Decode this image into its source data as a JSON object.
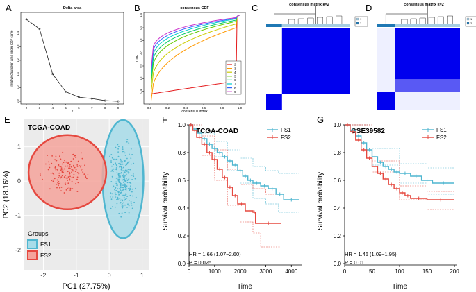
{
  "panels": {
    "A": {
      "letter": "A",
      "title": "Delta area",
      "xlabel": "k",
      "ylabel": "relative change in area under CDF curve",
      "x": [
        2,
        3,
        4,
        5,
        6,
        7,
        8,
        9
      ],
      "y": [
        1.5,
        1.43,
        1.1,
        0.97,
        0.93,
        0.92,
        0.905,
        0.9
      ],
      "xticks": [
        "2",
        "3",
        "4",
        "5",
        "6",
        "7",
        "8",
        "9"
      ],
      "yticks": [
        "0.9",
        "1.0",
        "1.1",
        "1.2",
        "1.3",
        "1.4"
      ],
      "yrange": [
        0.88,
        1.55
      ]
    },
    "B": {
      "letter": "B",
      "title": "consensus CDF",
      "xlabel": "consensus index",
      "ylabel": "CDF",
      "xticks": [
        "0.0",
        "0.2",
        "0.4",
        "0.6",
        "0.8",
        "1.0"
      ],
      "yticks": [
        "0.4",
        "0.5",
        "0.6",
        "0.7",
        "0.8",
        "0.9",
        "1.0"
      ],
      "legend": [
        {
          "label": "2",
          "color": "#e41a1c"
        },
        {
          "label": "3",
          "color": "#ff9900"
        },
        {
          "label": "4",
          "color": "#cccc00"
        },
        {
          "label": "5",
          "color": "#66cc00"
        },
        {
          "label": "6",
          "color": "#00cc66"
        },
        {
          "label": "7",
          "color": "#00cccc"
        },
        {
          "label": "8",
          "color": "#3366ff"
        },
        {
          "label": "9",
          "color": "#cc33cc"
        }
      ],
      "series": [
        {
          "k": "2",
          "start": 0.38,
          "end": 0.48,
          "curve": 0.6
        },
        {
          "k": "3",
          "start": 0.33,
          "end": 0.9,
          "curve": 0.4
        },
        {
          "k": "4",
          "start": 0.4,
          "end": 0.93,
          "curve": 0.35
        },
        {
          "k": "5",
          "start": 0.46,
          "end": 0.95,
          "curve": 0.3
        },
        {
          "k": "6",
          "start": 0.5,
          "end": 0.96,
          "curve": 0.28
        },
        {
          "k": "7",
          "start": 0.53,
          "end": 0.97,
          "curve": 0.26
        },
        {
          "k": "8",
          "start": 0.56,
          "end": 0.975,
          "curve": 0.24
        },
        {
          "k": "9",
          "start": 0.58,
          "end": 0.98,
          "curve": 0.22
        }
      ]
    },
    "C": {
      "letter": "C",
      "title": "consensus matrix k=2",
      "legend": [
        {
          "label": "1",
          "color": "#a6cee3"
        },
        {
          "label": "2",
          "color": "#1f78b4"
        }
      ],
      "split": 0.19,
      "blue": "#0000ee"
    },
    "D": {
      "letter": "D",
      "title": "consensus matrix k=2",
      "legend": [
        {
          "label": "1",
          "color": "#a6cee3"
        },
        {
          "label": "2",
          "color": "#1f78b4"
        }
      ],
      "split": 0.22,
      "blue": "#0000ee"
    },
    "E": {
      "letter": "E",
      "dataset": "TCGA-COAD",
      "xlabel": "PC1 (27.75%)",
      "ylabel": "PC2 (18.16%)",
      "xticks": [
        "-2",
        "-1",
        "0",
        "1"
      ],
      "yticks": [
        "-2",
        "-1",
        "0",
        "1"
      ],
      "xrange": [
        -2.6,
        1.2
      ],
      "yrange": [
        -2.6,
        1.8
      ],
      "groups_title": "Groups",
      "groups": [
        {
          "label": "FS1",
          "color": "#4fb6d0",
          "fill": "#a7dce9"
        },
        {
          "label": "FS2",
          "color": "#e5483f",
          "fill": "#f4a39b"
        }
      ],
      "ellipses": [
        {
          "group": "FS1",
          "cx": 0.42,
          "cy": 0.06,
          "rx": 0.62,
          "ry": 1.72
        },
        {
          "group": "FS2",
          "cx": -1.27,
          "cy": 0.26,
          "rx": 1.18,
          "ry": 1.08
        }
      ]
    },
    "F": {
      "letter": "F",
      "dataset": "TCGA-COAD",
      "xlabel": "Time",
      "ylabel": "Survival probability",
      "xticks": [
        "0",
        "1000",
        "2000",
        "3000",
        "4000"
      ],
      "yticks": [
        "0.0",
        "0.2",
        "0.4",
        "0.6",
        "0.8",
        "1.0"
      ],
      "xrange": [
        0,
        4400
      ],
      "hr": "HR = 1.66 (1.07−2.60)",
      "p": "P = 0.025",
      "legend": [
        {
          "label": "FS1",
          "color": "#4fb6d0"
        },
        {
          "label": "FS2",
          "color": "#e5483f"
        }
      ],
      "curves": {
        "FS1": [
          [
            0,
            1.0
          ],
          [
            150,
            0.97
          ],
          [
            300,
            0.94
          ],
          [
            500,
            0.9
          ],
          [
            700,
            0.86
          ],
          [
            900,
            0.83
          ],
          [
            1100,
            0.8
          ],
          [
            1300,
            0.77
          ],
          [
            1500,
            0.74
          ],
          [
            1700,
            0.71
          ],
          [
            1900,
            0.67
          ],
          [
            2100,
            0.63
          ],
          [
            2300,
            0.6
          ],
          [
            2500,
            0.58
          ],
          [
            2800,
            0.56
          ],
          [
            3100,
            0.54
          ],
          [
            3400,
            0.5
          ],
          [
            3700,
            0.46
          ],
          [
            4300,
            0.46
          ]
        ],
        "FS2": [
          [
            0,
            1.0
          ],
          [
            150,
            0.96
          ],
          [
            300,
            0.91
          ],
          [
            500,
            0.86
          ],
          [
            700,
            0.8
          ],
          [
            900,
            0.75
          ],
          [
            1100,
            0.68
          ],
          [
            1300,
            0.62
          ],
          [
            1500,
            0.55
          ],
          [
            1700,
            0.49
          ],
          [
            1900,
            0.43
          ],
          [
            2200,
            0.38
          ],
          [
            2500,
            0.37
          ],
          [
            2600,
            0.29
          ],
          [
            3600,
            0.29
          ]
        ]
      },
      "ci": {
        "FS1_hi": [
          [
            0,
            1.0
          ],
          [
            500,
            0.94
          ],
          [
            1000,
            0.88
          ],
          [
            1500,
            0.82
          ],
          [
            2000,
            0.76
          ],
          [
            2500,
            0.7
          ],
          [
            3000,
            0.67
          ],
          [
            3500,
            0.65
          ],
          [
            4300,
            0.65
          ]
        ],
        "FS1_lo": [
          [
            0,
            1.0
          ],
          [
            500,
            0.86
          ],
          [
            1000,
            0.77
          ],
          [
            1500,
            0.67
          ],
          [
            2000,
            0.58
          ],
          [
            2500,
            0.47
          ],
          [
            3000,
            0.43
          ],
          [
            3500,
            0.37
          ],
          [
            4300,
            0.32
          ]
        ],
        "FS2_hi": [
          [
            0,
            1.0
          ],
          [
            500,
            0.92
          ],
          [
            1000,
            0.82
          ],
          [
            1500,
            0.68
          ],
          [
            2000,
            0.57
          ],
          [
            2500,
            0.54
          ],
          [
            3000,
            0.5
          ],
          [
            3600,
            0.5
          ]
        ],
        "FS2_lo": [
          [
            0,
            1.0
          ],
          [
            500,
            0.78
          ],
          [
            1000,
            0.6
          ],
          [
            1500,
            0.42
          ],
          [
            2000,
            0.3
          ],
          [
            2500,
            0.22
          ],
          [
            2800,
            0.12
          ],
          [
            3600,
            0.12
          ]
        ]
      }
    },
    "G": {
      "letter": "G",
      "dataset": "GSE39582",
      "xlabel": "Time",
      "ylabel": "Survival probability",
      "xticks": [
        "0",
        "50",
        "100",
        "150",
        "200"
      ],
      "yticks": [
        "0.0",
        "0.2",
        "0.4",
        "0.6",
        "0.8",
        "1.0"
      ],
      "xrange": [
        0,
        205
      ],
      "hr": "HR = 1.46 (1.09−1.95)",
      "p": "P = 0.01",
      "legend": [
        {
          "label": "FS1",
          "color": "#4fb6d0"
        },
        {
          "label": "FS2",
          "color": "#e5483f"
        }
      ],
      "curves": {
        "FS1": [
          [
            0,
            1.0
          ],
          [
            10,
            0.96
          ],
          [
            20,
            0.92
          ],
          [
            30,
            0.87
          ],
          [
            40,
            0.82
          ],
          [
            50,
            0.77
          ],
          [
            60,
            0.73
          ],
          [
            70,
            0.7
          ],
          [
            80,
            0.68
          ],
          [
            90,
            0.66
          ],
          [
            100,
            0.65
          ],
          [
            120,
            0.63
          ],
          [
            140,
            0.6
          ],
          [
            160,
            0.58
          ],
          [
            200,
            0.58
          ]
        ],
        "FS2": [
          [
            0,
            1.0
          ],
          [
            10,
            0.95
          ],
          [
            20,
            0.89
          ],
          [
            30,
            0.82
          ],
          [
            40,
            0.76
          ],
          [
            50,
            0.7
          ],
          [
            60,
            0.65
          ],
          [
            70,
            0.61
          ],
          [
            80,
            0.57
          ],
          [
            90,
            0.54
          ],
          [
            100,
            0.51
          ],
          [
            110,
            0.49
          ],
          [
            120,
            0.47
          ],
          [
            150,
            0.46
          ],
          [
            200,
            0.46
          ]
        ]
      },
      "ci": {
        "FS1_hi": [
          [
            0,
            1.0
          ],
          [
            50,
            0.83
          ],
          [
            100,
            0.72
          ],
          [
            150,
            0.69
          ],
          [
            200,
            0.69
          ]
        ],
        "FS1_lo": [
          [
            0,
            1.0
          ],
          [
            50,
            0.71
          ],
          [
            100,
            0.58
          ],
          [
            150,
            0.5
          ],
          [
            200,
            0.5
          ]
        ],
        "FS2_hi": [
          [
            0,
            1.0
          ],
          [
            50,
            0.74
          ],
          [
            100,
            0.56
          ],
          [
            150,
            0.52
          ],
          [
            200,
            0.52
          ]
        ],
        "FS2_lo": [
          [
            0,
            1.0
          ],
          [
            50,
            0.66
          ],
          [
            100,
            0.46
          ],
          [
            150,
            0.39
          ],
          [
            200,
            0.39
          ]
        ]
      }
    }
  }
}
